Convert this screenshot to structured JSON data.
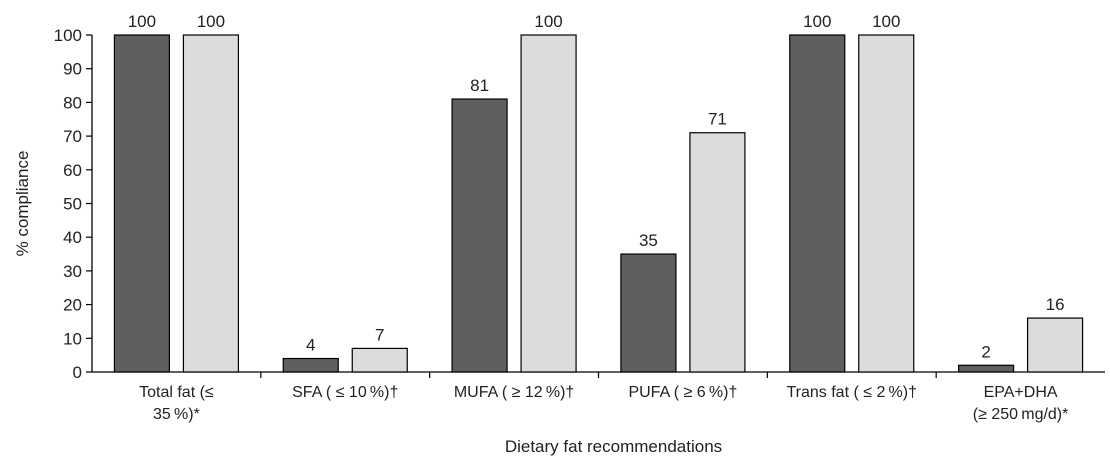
{
  "chart_data": {
    "type": "bar",
    "title": "",
    "xlabel": "Dietary fat recommendations",
    "ylabel": "% compliance",
    "ylim": [
      0,
      100
    ],
    "yticks": [
      0,
      10,
      20,
      30,
      40,
      50,
      60,
      70,
      80,
      90,
      100
    ],
    "grid": false,
    "legend": null,
    "categories": [
      [
        "Total fat (≤",
        "35 %)*"
      ],
      [
        "SFA ( ≤ 10 %)†"
      ],
      [
        "MUFA ( ≥ 12 %)†"
      ],
      [
        "PUFA ( ≥ 6 %)†"
      ],
      [
        "Trans fat ( ≤ 2 %)†"
      ],
      [
        "EPA+DHA",
        "(≥ 250 mg/d)*"
      ]
    ],
    "series": [
      {
        "color": "#5f5f5f",
        "values": [
          100,
          4,
          81,
          35,
          100,
          2
        ]
      },
      {
        "color": "#dcdcdc",
        "values": [
          100,
          7,
          100,
          71,
          100,
          16
        ]
      }
    ]
  }
}
